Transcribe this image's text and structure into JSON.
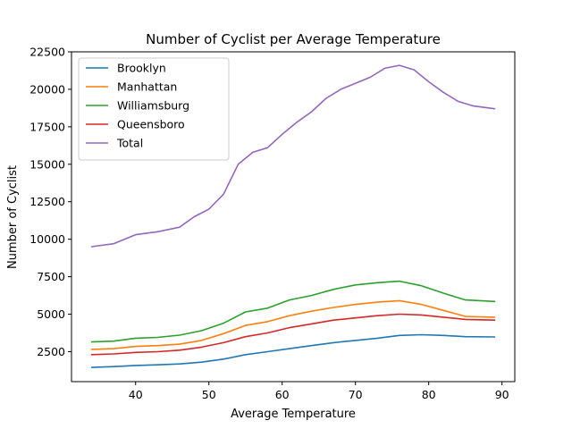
{
  "chart_data": {
    "type": "line",
    "title": "Number of Cyclist per Average Temperature",
    "xlabel": "Average Temperature",
    "ylabel": "Number of Cyclist",
    "xlim": [
      31.25,
      91.75
    ],
    "ylim": [
      500,
      22500
    ],
    "xticks": [
      40,
      50,
      60,
      70,
      80,
      90
    ],
    "yticks": [
      2500,
      5000,
      7500,
      10000,
      12500,
      15000,
      17500,
      20000,
      22500
    ],
    "grid": false,
    "legend_position": "top-left",
    "series": [
      {
        "name": "Brooklyn",
        "color": "#1f77b4",
        "x": [
          34,
          37,
          40,
          43,
          46,
          49,
          52,
          55,
          58,
          61,
          64,
          67,
          70,
          73,
          76,
          79,
          82,
          85,
          89
        ],
        "y": [
          1450,
          1500,
          1580,
          1620,
          1680,
          1800,
          2000,
          2300,
          2500,
          2700,
          2900,
          3100,
          3250,
          3400,
          3580,
          3630,
          3580,
          3500,
          3480
        ]
      },
      {
        "name": "Manhattan",
        "color": "#ff7f0e",
        "x": [
          34,
          37,
          40,
          43,
          46,
          49,
          52,
          55,
          58,
          61,
          64,
          67,
          70,
          73,
          76,
          79,
          82,
          85,
          89
        ],
        "y": [
          2650,
          2700,
          2850,
          2900,
          3000,
          3250,
          3700,
          4250,
          4500,
          4900,
          5200,
          5450,
          5650,
          5800,
          5900,
          5650,
          5250,
          4850,
          4800
        ]
      },
      {
        "name": "Williamsburg",
        "color": "#2ca02c",
        "x": [
          34,
          37,
          40,
          43,
          46,
          49,
          52,
          55,
          58,
          61,
          64,
          67,
          70,
          73,
          76,
          79,
          82,
          85,
          89
        ],
        "y": [
          3150,
          3200,
          3400,
          3450,
          3600,
          3900,
          4400,
          5150,
          5400,
          5950,
          6250,
          6650,
          6950,
          7100,
          7200,
          6900,
          6400,
          5950,
          5850
        ]
      },
      {
        "name": "Queensboro",
        "color": "#d62728",
        "x": [
          34,
          37,
          40,
          43,
          46,
          49,
          52,
          55,
          58,
          61,
          64,
          67,
          70,
          73,
          76,
          79,
          82,
          85,
          89
        ],
        "y": [
          2300,
          2350,
          2450,
          2500,
          2600,
          2800,
          3100,
          3500,
          3750,
          4100,
          4350,
          4600,
          4750,
          4900,
          5000,
          4950,
          4800,
          4650,
          4600
        ]
      },
      {
        "name": "Total",
        "color": "#9467bd",
        "x": [
          34,
          37,
          40,
          43,
          46,
          48,
          50,
          52,
          54,
          56,
          58,
          60,
          62,
          64,
          66,
          68,
          70,
          72,
          74,
          76,
          78,
          80,
          82,
          84,
          86,
          89
        ],
        "y": [
          9500,
          9700,
          10300,
          10500,
          10800,
          11500,
          12000,
          13000,
          15000,
          15800,
          16100,
          17000,
          17800,
          18500,
          19400,
          20000,
          20400,
          20800,
          21400,
          21600,
          21300,
          20500,
          19800,
          19200,
          18900,
          18700
        ]
      }
    ]
  }
}
